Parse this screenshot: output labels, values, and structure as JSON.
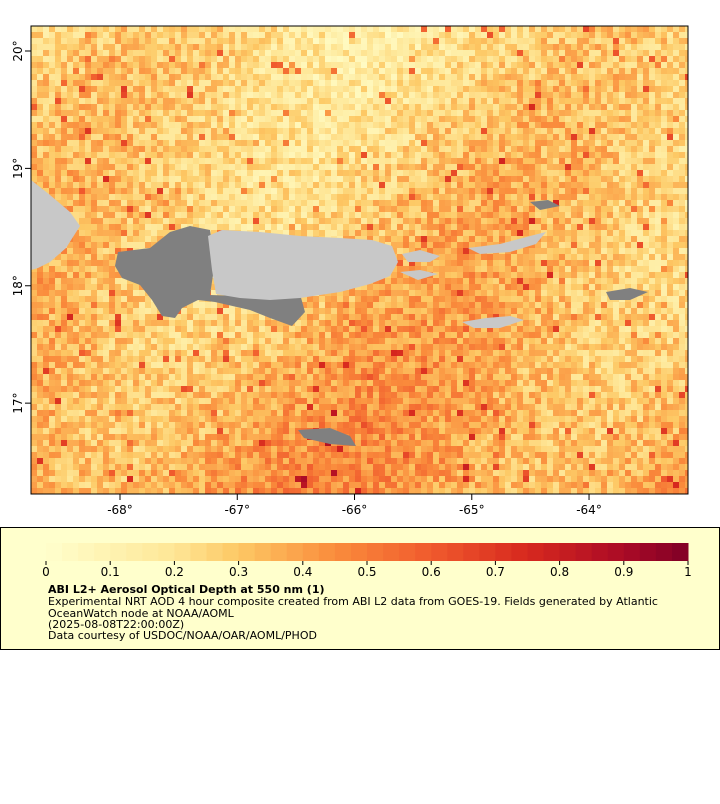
{
  "chart_data": {
    "type": "map",
    "xlim": [
      -68.759,
      -63.156
    ],
    "ylim": [
      16.226,
      20.213
    ],
    "xticks": [
      {
        "value": -68,
        "label": "-68°"
      },
      {
        "value": -67,
        "label": "-67°"
      },
      {
        "value": -66,
        "label": "-66°"
      },
      {
        "value": -65,
        "label": "-65°"
      },
      {
        "value": -64,
        "label": "-64°"
      }
    ],
    "yticks": [
      {
        "value": 17,
        "label": "17°"
      },
      {
        "value": 18,
        "label": "18°"
      },
      {
        "value": 19,
        "label": "19°"
      },
      {
        "value": 20,
        "label": "20°"
      }
    ],
    "colorbar": {
      "lim": [
        0,
        1
      ],
      "ticks": [
        0,
        0.1,
        0.2,
        0.3,
        0.4,
        0.5,
        0.6,
        0.7,
        0.8,
        0.9,
        1
      ]
    },
    "title": "ABI L2+ Aerosol Optical Depth at 550 nm (1)",
    "description": [
      "Experimental NRT AOD 4 hour composite created from ABI L2 data from GOES-19. Fields generated by Atlantic",
      "OceanWatch node at NOAA/AOML",
      "(2025-08-08T22:00:00Z)",
      "Data courtesy of USDOC/NOAA/OAR/AOML/PHOD"
    ]
  }
}
